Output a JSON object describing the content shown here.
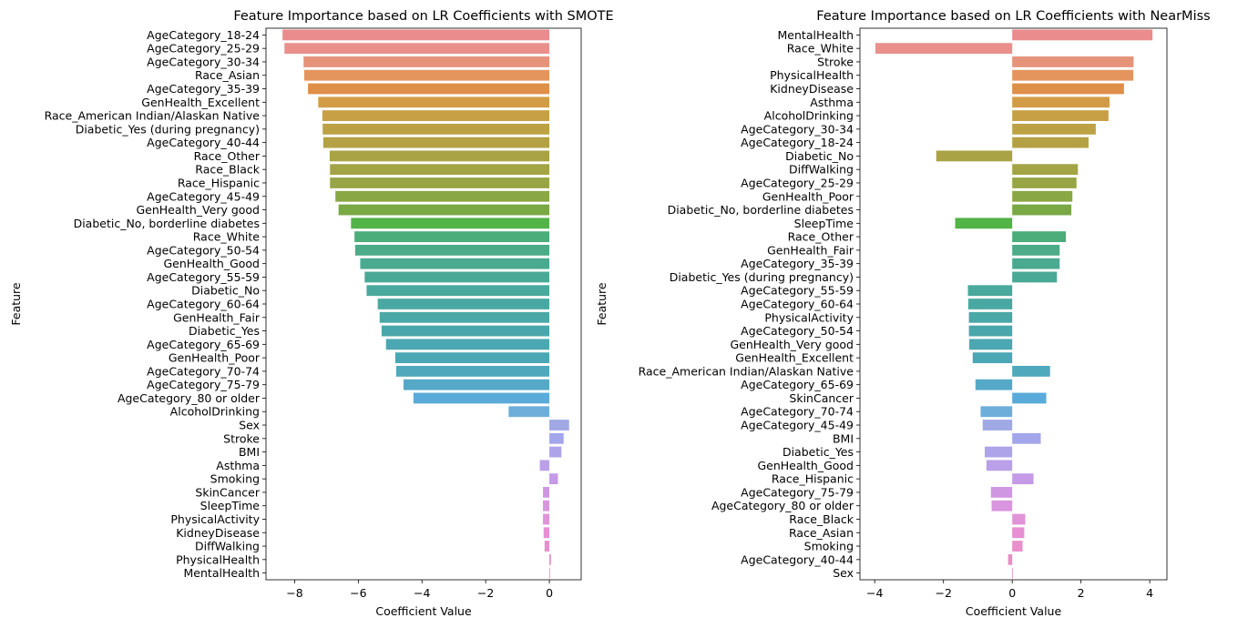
{
  "chart_data": [
    {
      "type": "bar",
      "orientation": "horizontal",
      "title": "Feature Importance based on LR Coefficients with SMOTE",
      "xlabel": "Coefficient Value",
      "ylabel": "Feature",
      "xlim": [
        -8.9,
        1.0
      ],
      "xticks": [
        -8,
        -6,
        -4,
        -2,
        0
      ],
      "xtick_labels": [
        "−8",
        "−6",
        "−4",
        "−2",
        "0"
      ],
      "grid": false,
      "categories": [
        "AgeCategory_18-24",
        "AgeCategory_25-29",
        "AgeCategory_30-34",
        "Race_Asian",
        "AgeCategory_35-39",
        "GenHealth_Excellent",
        "Race_American Indian/Alaskan Native",
        "Diabetic_Yes (during pregnancy)",
        "AgeCategory_40-44",
        "Race_Other",
        "Race_Black",
        "Race_Hispanic",
        "AgeCategory_45-49",
        "GenHealth_Very good",
        "Diabetic_No, borderline diabetes",
        "Race_White",
        "AgeCategory_50-54",
        "GenHealth_Good",
        "AgeCategory_55-59",
        "Diabetic_No",
        "AgeCategory_60-64",
        "GenHealth_Fair",
        "Diabetic_Yes",
        "AgeCategory_65-69",
        "GenHealth_Poor",
        "AgeCategory_70-74",
        "AgeCategory_75-79",
        "AgeCategory_80 or older",
        "AlcoholDrinking",
        "Sex",
        "Stroke",
        "BMI",
        "Asthma",
        "Smoking",
        "SkinCancer",
        "SleepTime",
        "PhysicalActivity",
        "KidneyDisease",
        "DiffWalking",
        "PhysicalHealth",
        "MentalHealth"
      ],
      "values": [
        -8.38,
        -8.32,
        -7.72,
        -7.7,
        -7.58,
        -7.26,
        -7.13,
        -7.12,
        -7.1,
        -6.9,
        -6.89,
        -6.89,
        -6.72,
        -6.62,
        -6.23,
        -6.12,
        -6.1,
        -5.94,
        -5.8,
        -5.74,
        -5.39,
        -5.33,
        -5.27,
        -5.13,
        -4.84,
        -4.81,
        -4.58,
        -4.27,
        -1.28,
        0.62,
        0.45,
        0.38,
        -0.3,
        0.27,
        -0.2,
        -0.2,
        -0.2,
        -0.18,
        -0.15,
        0.05,
        0.01
      ]
    },
    {
      "type": "bar",
      "orientation": "horizontal",
      "title": "Feature Importance based on LR Coefficients with NearMiss",
      "xlabel": "Coefficient Value",
      "ylabel": "Feature",
      "xlim": [
        -4.43,
        4.5
      ],
      "xticks": [
        -4,
        -2,
        0,
        2,
        4
      ],
      "xtick_labels": [
        "−4",
        "−2",
        "0",
        "2",
        "4"
      ],
      "grid": false,
      "categories": [
        "MentalHealth",
        "Race_White",
        "Stroke",
        "PhysicalHealth",
        "KidneyDisease",
        "Asthma",
        "AlcoholDrinking",
        "AgeCategory_30-34",
        "AgeCategory_18-24",
        "Diabetic_No",
        "DiffWalking",
        "AgeCategory_25-29",
        "GenHealth_Poor",
        "Diabetic_No, borderline diabetes",
        "SleepTime",
        "Race_Other",
        "GenHealth_Fair",
        "AgeCategory_35-39",
        "Diabetic_Yes (during pregnancy)",
        "AgeCategory_55-59",
        "AgeCategory_60-64",
        "PhysicalActivity",
        "AgeCategory_50-54",
        "GenHealth_Very good",
        "GenHealth_Excellent",
        "Race_American Indian/Alaskan Native",
        "AgeCategory_65-69",
        "SkinCancer",
        "AgeCategory_70-74",
        "AgeCategory_45-49",
        "BMI",
        "Diabetic_Yes",
        "GenHealth_Good",
        "Race_Hispanic",
        "AgeCategory_75-79",
        "AgeCategory_80 or older",
        "Race_Black",
        "Race_Asian",
        "Smoking",
        "AgeCategory_40-44",
        "Sex"
      ],
      "values": [
        4.08,
        -3.98,
        3.53,
        3.52,
        3.25,
        2.83,
        2.8,
        2.43,
        2.22,
        -2.21,
        1.91,
        1.87,
        1.75,
        1.72,
        -1.66,
        1.56,
        1.38,
        1.38,
        1.3,
        -1.29,
        -1.28,
        -1.26,
        -1.26,
        -1.25,
        -1.15,
        1.1,
        -1.07,
        0.99,
        -0.92,
        -0.86,
        0.83,
        -0.8,
        -0.75,
        0.62,
        -0.62,
        -0.6,
        0.38,
        0.35,
        0.3,
        -0.12,
        0.02
      ]
    }
  ],
  "palette": [
    "#ea8b8d",
    "#e9908c",
    "#e59379",
    "#e4955d",
    "#de8f48",
    "#d29c46",
    "#c7a046",
    "#bca244",
    "#b4a144",
    "#a9a345",
    "#a2a445",
    "#97a545",
    "#8aa745",
    "#79a845",
    "#52b347",
    "#4cac7a",
    "#4cab88",
    "#4aaa8f",
    "#4aa996",
    "#49a99c",
    "#4aa8a2",
    "#4aa8a6",
    "#4aa7ab",
    "#4ba7b1",
    "#4ca7b5",
    "#4fa8bc",
    "#55a9c7",
    "#5aabd9",
    "#6eaeda",
    "#a0a9e4",
    "#a4a6eb",
    "#ada4ea",
    "#baa0e9",
    "#c59ae6",
    "#cf97e2",
    "#d995dd",
    "#e193d8",
    "#e690d3",
    "#e88fcc",
    "#e98ec4",
    "#ea8cbb"
  ]
}
